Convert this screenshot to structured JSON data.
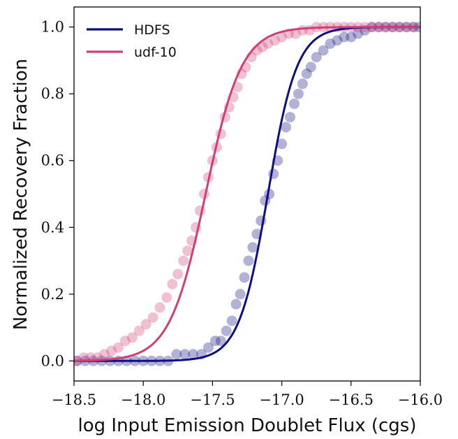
{
  "chart_data": {
    "type": "scatter",
    "xlabel": "log Input Emission Doublet Flux (cgs)",
    "ylabel": "Normalized Recovery Fraction",
    "xlim": [
      -18.5,
      -16.0
    ],
    "ylim": [
      -0.06,
      1.06
    ],
    "xticks": [
      {
        "value": -18.5,
        "label": "−18.5"
      },
      {
        "value": -18.0,
        "label": "−18.0"
      },
      {
        "value": -17.5,
        "label": "−17.5"
      },
      {
        "value": -17.0,
        "label": "−17.0"
      },
      {
        "value": -16.5,
        "label": "−16.5"
      },
      {
        "value": -16.0,
        "label": "−16.0"
      }
    ],
    "yticks": [
      {
        "value": 0.0,
        "label": "0.0"
      },
      {
        "value": 0.2,
        "label": "0.2"
      },
      {
        "value": 0.4,
        "label": "0.4"
      },
      {
        "value": 0.6,
        "label": "0.6"
      },
      {
        "value": 0.8,
        "label": "0.8"
      },
      {
        "value": 1.0,
        "label": "1.0"
      }
    ],
    "grid": false,
    "legend_position": "top-left",
    "series": [
      {
        "name": "HDFS",
        "color": "#0f0f80",
        "fit": {
          "model": "logistic",
          "midpoint": -17.1,
          "width": 0.105
        },
        "points": {
          "x": [
            -18.48,
            -18.42,
            -18.36,
            -18.3,
            -18.24,
            -18.18,
            -18.12,
            -18.06,
            -18.0,
            -17.94,
            -17.88,
            -17.82,
            -17.76,
            -17.7,
            -17.64,
            -17.58,
            -17.53,
            -17.48,
            -17.44,
            -17.4,
            -17.36,
            -17.33,
            -17.3,
            -17.27,
            -17.24,
            -17.21,
            -17.18,
            -17.15,
            -17.12,
            -17.09,
            -17.06,
            -17.03,
            -17.0,
            -16.97,
            -16.94,
            -16.91,
            -16.88,
            -16.85,
            -16.82,
            -16.79,
            -16.75,
            -16.7,
            -16.65,
            -16.6,
            -16.55,
            -16.5,
            -16.45,
            -16.4,
            -16.35,
            -16.3,
            -16.25,
            -16.2,
            -16.15,
            -16.1,
            -16.05,
            -16.01
          ],
          "y": [
            0.0,
            0.0,
            0.0,
            0.0,
            0.0,
            0.0,
            0.0,
            0.0,
            0.0,
            0.0,
            0.0,
            0.0,
            0.02,
            0.02,
            0.02,
            0.02,
            0.04,
            0.06,
            0.06,
            0.09,
            0.12,
            0.17,
            0.2,
            0.25,
            0.3,
            0.34,
            0.38,
            0.42,
            0.48,
            0.5,
            0.56,
            0.6,
            0.65,
            0.7,
            0.73,
            0.77,
            0.8,
            0.83,
            0.86,
            0.88,
            0.91,
            0.93,
            0.95,
            0.96,
            0.97,
            0.97,
            0.98,
            0.99,
            1.0,
            1.0,
            1.0,
            1.0,
            1.0,
            1.0,
            1.0,
            1.0
          ]
        }
      },
      {
        "name": "udf-10",
        "color": "#cf3f77",
        "fit": {
          "model": "logistic",
          "midpoint": -17.55,
          "width": 0.13
        },
        "points": {
          "x": [
            -18.48,
            -18.43,
            -18.38,
            -18.33,
            -18.28,
            -18.23,
            -18.18,
            -18.13,
            -18.08,
            -18.03,
            -17.98,
            -17.93,
            -17.88,
            -17.83,
            -17.79,
            -17.75,
            -17.71,
            -17.68,
            -17.65,
            -17.62,
            -17.59,
            -17.56,
            -17.53,
            -17.5,
            -17.47,
            -17.44,
            -17.41,
            -17.38,
            -17.35,
            -17.32,
            -17.29,
            -17.26,
            -17.22,
            -17.18,
            -17.14,
            -17.1,
            -17.05,
            -17.0,
            -16.95,
            -16.9,
            -16.85,
            -16.8,
            -16.75,
            -16.7,
            -16.65,
            -16.6,
            -16.55,
            -16.5,
            -16.45,
            -16.4,
            -16.35,
            -16.3,
            -16.25,
            -16.2,
            -16.15,
            -16.1,
            -16.05
          ],
          "y": [
            0.0,
            0.01,
            0.01,
            0.01,
            0.02,
            0.03,
            0.04,
            0.06,
            0.07,
            0.09,
            0.11,
            0.13,
            0.16,
            0.19,
            0.23,
            0.26,
            0.3,
            0.33,
            0.36,
            0.4,
            0.45,
            0.5,
            0.55,
            0.6,
            0.64,
            0.68,
            0.73,
            0.76,
            0.79,
            0.82,
            0.86,
            0.88,
            0.91,
            0.93,
            0.94,
            0.95,
            0.96,
            0.97,
            0.98,
            0.98,
            0.99,
            0.99,
            1.0,
            1.0,
            1.0,
            1.0,
            1.0,
            1.0,
            1.0,
            1.0,
            1.0,
            1.0,
            1.0,
            1.0,
            1.0,
            1.0,
            1.0
          ]
        }
      }
    ]
  }
}
